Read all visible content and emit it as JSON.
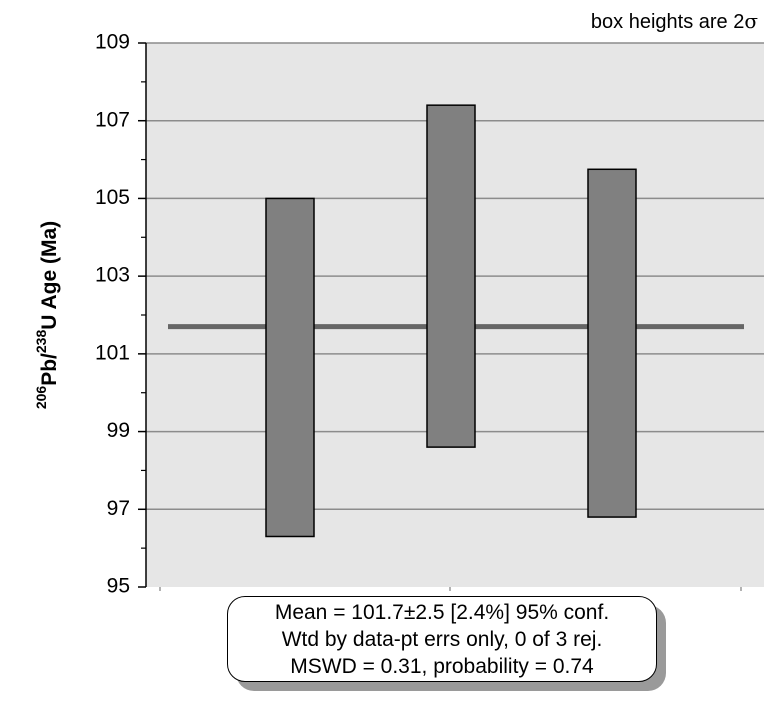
{
  "chart_data": {
    "type": "bar",
    "subtype": "error-box",
    "note_text": "box heights are 2",
    "note_symbol": "σ",
    "ylabel": {
      "sup1": "206",
      "part1": "Pb/",
      "sup2": "238",
      "part2": "U Age (Ma)"
    },
    "ylim": [
      95,
      109
    ],
    "yticks": [
      95,
      97,
      99,
      101,
      103,
      105,
      107,
      109
    ],
    "grid": true,
    "mean_line": 101.7,
    "boxes": [
      {
        "low": 96.3,
        "high": 105.0
      },
      {
        "low": 98.6,
        "high": 107.4
      },
      {
        "low": 96.8,
        "high": 105.75
      }
    ],
    "colors": {
      "plot_bg": "#e6e6e6",
      "box_fill": "#808080",
      "mean_line": "#666666",
      "grid": "#8c8c8c"
    },
    "stats": {
      "line1": "Mean = 101.7±2.5  [2.4%]  95% conf.",
      "line2": "Wtd by data-pt errs only, 0 of 3 rej.",
      "line3": "MSWD = 0.31, probability = 0.74"
    }
  }
}
